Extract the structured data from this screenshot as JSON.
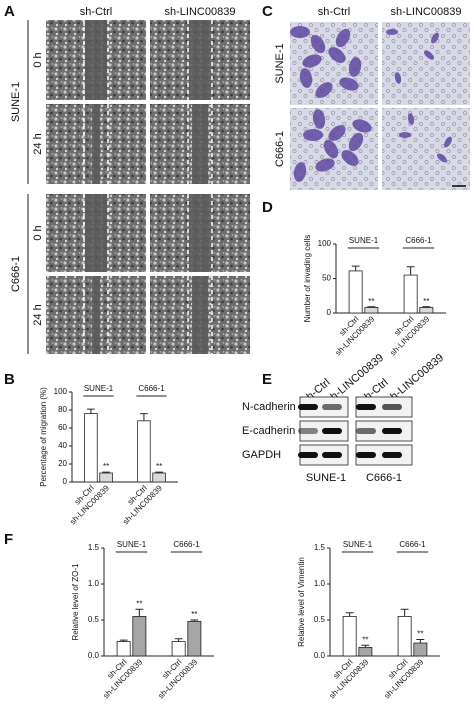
{
  "panel_labels": [
    "A",
    "B",
    "C",
    "D",
    "E",
    "F"
  ],
  "figure_a": {
    "columns": [
      "sh-Ctrl",
      "sh-LINC00839"
    ],
    "rows": [
      {
        "cell": "SUNE-1",
        "times": [
          "0 h",
          "24 h"
        ]
      },
      {
        "cell": "C666-1",
        "times": [
          "0 h",
          "24 h"
        ]
      }
    ]
  },
  "figure_c": {
    "columns": [
      "sh-Ctrl",
      "sh-LINC00839"
    ],
    "rows": [
      "SUNE-1",
      "C666-1"
    ]
  },
  "figure_e": {
    "lanes": [
      "sh-Ctrl",
      "sh-LINC00839",
      "sh-Ctrl",
      "sh-LINC00839"
    ],
    "proteins": [
      "N-cadherin",
      "E-cadherin",
      "GAPDH"
    ],
    "cells": [
      "SUNE-1",
      "C666-1"
    ]
  },
  "chart_data": [
    {
      "type": "bar",
      "ylabel": "Percentage of migration (%)",
      "groups": [
        "SUNE-1",
        "C666-1"
      ],
      "categories": [
        "sh-Ctrl",
        "sh-LINC00839",
        "sh-Ctrl",
        "sh-LINC00839"
      ],
      "values": [
        76,
        10,
        68,
        10
      ],
      "errors": [
        5,
        1,
        8,
        1
      ],
      "colors": [
        "#ffffff",
        "#d9d9d9",
        "#ffffff",
        "#d9d9d9"
      ],
      "annotations": [
        "**",
        "**"
      ],
      "ylim": [
        0,
        100
      ],
      "yticks": [
        0,
        20,
        40,
        60,
        80,
        100
      ]
    },
    {
      "type": "bar",
      "ylabel": "Number of invading cells",
      "groups": [
        "SUNE-1",
        "C666-1"
      ],
      "categories": [
        "sh-Ctrl",
        "sh-LINC00839",
        "sh-Ctrl",
        "sh-LINC00839"
      ],
      "values": [
        61,
        8,
        55,
        8
      ],
      "errors": [
        7,
        1,
        12,
        1
      ],
      "colors": [
        "#ffffff",
        "#d9d9d9",
        "#ffffff",
        "#d9d9d9"
      ],
      "annotations": [
        "**",
        "**"
      ],
      "ylim": [
        0,
        100
      ],
      "yticks": [
        0,
        50,
        100
      ]
    },
    {
      "type": "bar",
      "ylabel": "Relative level of ZO-1",
      "groups": [
        "SUNE-1",
        "C666-1"
      ],
      "categories": [
        "sh-Ctrl",
        "sh-LINC00839",
        "sh-Ctrl",
        "sh-LINC00839"
      ],
      "values": [
        0.2,
        0.55,
        0.2,
        0.48
      ],
      "errors": [
        0.02,
        0.1,
        0.04,
        0.02
      ],
      "colors": [
        "#ffffff",
        "#a6a6a6",
        "#ffffff",
        "#a6a6a6"
      ],
      "annotations": [
        "**",
        "**"
      ],
      "ylim": [
        0,
        1.5
      ],
      "yticks": [
        {
          "value": 0,
          "label": "0.0"
        },
        {
          "value": 0.5,
          "label": "0.5"
        },
        {
          "value": 1,
          "label": "1.0"
        },
        {
          "value": 1.5,
          "label": "1.5"
        }
      ]
    },
    {
      "type": "bar",
      "ylabel": "Relative level of Vimentin",
      "groups": [
        "SUNE-1",
        "C666-1"
      ],
      "categories": [
        "sh-Ctrl",
        "sh-LINC00839",
        "sh-Ctrl",
        "sh-LINC00839"
      ],
      "values": [
        0.55,
        0.12,
        0.55,
        0.18
      ],
      "errors": [
        0.05,
        0.03,
        0.1,
        0.05
      ],
      "colors": [
        "#ffffff",
        "#a6a6a6",
        "#ffffff",
        "#a6a6a6"
      ],
      "annotations": [
        "**",
        "**"
      ],
      "ylim": [
        0,
        1.5
      ],
      "yticks": [
        {
          "value": 0,
          "label": "0.0"
        },
        {
          "value": 0.5,
          "label": "0.5"
        },
        {
          "value": 1,
          "label": "1.0"
        },
        {
          "value": 1.5,
          "label": "1.5"
        }
      ]
    }
  ]
}
